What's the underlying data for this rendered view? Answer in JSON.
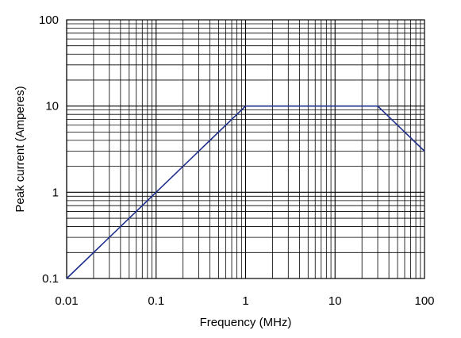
{
  "chart_data": {
    "type": "line",
    "title": "",
    "xlabel": "Frequency (MHz)",
    "ylabel": "Peak current (Amperes)",
    "x_scale": "log",
    "y_scale": "log",
    "xlim": [
      0.01,
      100
    ],
    "ylim": [
      0.1,
      100
    ],
    "x_ticks": [
      0.01,
      0.1,
      1,
      10,
      100
    ],
    "x_tick_labels": [
      "0.01",
      "0.1",
      "1",
      "10",
      "100"
    ],
    "y_ticks": [
      0.1,
      1,
      10,
      100
    ],
    "y_tick_labels": [
      "0.1",
      "1",
      "10",
      "100"
    ],
    "grid": true,
    "legend": "none",
    "series": [
      {
        "color": "#1f2f8c",
        "x": [
          0.01,
          1,
          30,
          100
        ],
        "y": [
          0.1,
          10,
          10,
          3
        ]
      }
    ]
  }
}
